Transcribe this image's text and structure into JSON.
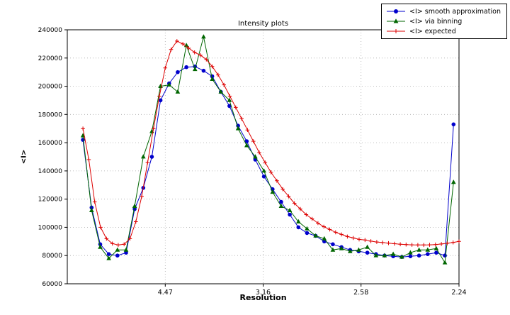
{
  "chart_data": {
    "type": "line",
    "title": "Intensity plots",
    "xlabel": "Resolution",
    "ylabel": "<I>",
    "x_axis_scale": "linear in 1/d^2 (x values are 1/d^2); tick labels show resolution d",
    "xlim": [
      0,
      0.2
    ],
    "ylim": [
      60000,
      240000
    ],
    "x_ticks": [
      {
        "value": 0.05,
        "label": "4.47"
      },
      {
        "value": 0.1,
        "label": "3.16"
      },
      {
        "value": 0.15,
        "label": "2.58"
      },
      {
        "value": 0.2,
        "label": "2.24"
      }
    ],
    "y_ticks": [
      60000,
      80000,
      100000,
      120000,
      140000,
      160000,
      180000,
      200000,
      220000,
      240000
    ],
    "grid": true,
    "legend_position": "upper right outside axes",
    "series": [
      {
        "name": "<I> smooth approximation",
        "color": "#0000cc",
        "marker": "circle",
        "x": [
          0.008,
          0.0124,
          0.0168,
          0.0212,
          0.0256,
          0.03,
          0.0344,
          0.0388,
          0.0432,
          0.0476,
          0.052,
          0.0564,
          0.0608,
          0.0652,
          0.0696,
          0.074,
          0.0784,
          0.0828,
          0.0872,
          0.0916,
          0.096,
          0.1004,
          0.1048,
          0.1092,
          0.1136,
          0.118,
          0.1224,
          0.1268,
          0.1312,
          0.1356,
          0.14,
          0.1444,
          0.1488,
          0.1532,
          0.1576,
          0.162,
          0.1664,
          0.1708,
          0.1752,
          0.1796,
          0.184,
          0.1884,
          0.1928,
          0.1972
        ],
        "y": [
          162000,
          114000,
          88000,
          81000,
          80000,
          82000,
          113000,
          128000,
          150000,
          190000,
          202000,
          210000,
          213500,
          214000,
          211000,
          207000,
          196000,
          186000,
          172000,
          161000,
          148000,
          136000,
          127000,
          118000,
          109000,
          100000,
          96000,
          94000,
          90000,
          88000,
          86000,
          84000,
          83000,
          82000,
          81000,
          80000,
          79500,
          79000,
          79500,
          80000,
          81000,
          82000,
          80000,
          173000
        ]
      },
      {
        "name": "<I> via binning",
        "color": "#006600",
        "marker": "triangle",
        "x": [
          0.008,
          0.0124,
          0.0168,
          0.0212,
          0.0256,
          0.03,
          0.0344,
          0.0388,
          0.0432,
          0.0476,
          0.052,
          0.0564,
          0.0608,
          0.0652,
          0.0696,
          0.074,
          0.0784,
          0.0828,
          0.0872,
          0.0916,
          0.096,
          0.1004,
          0.1048,
          0.1092,
          0.1136,
          0.118,
          0.1224,
          0.1268,
          0.1312,
          0.1356,
          0.14,
          0.1444,
          0.1488,
          0.1532,
          0.1576,
          0.162,
          0.1664,
          0.1708,
          0.1752,
          0.1796,
          0.184,
          0.1884,
          0.1928,
          0.1972
        ],
        "y": [
          165000,
          112000,
          86000,
          78000,
          84000,
          84000,
          115000,
          150000,
          168000,
          200000,
          201000,
          196000,
          229000,
          212000,
          235000,
          205000,
          196000,
          190000,
          170000,
          158000,
          150000,
          140000,
          125000,
          115000,
          112000,
          104000,
          99000,
          94000,
          92000,
          84000,
          85000,
          83000,
          84000,
          86000,
          80000,
          80000,
          81000,
          79000,
          82000,
          84000,
          84000,
          85000,
          75000,
          132000
        ]
      },
      {
        "name": "<I> expected",
        "color": "#dd0000",
        "marker": "plus",
        "x": [
          0.008,
          0.011,
          0.014,
          0.017,
          0.02,
          0.023,
          0.026,
          0.029,
          0.032,
          0.035,
          0.038,
          0.041,
          0.044,
          0.047,
          0.05,
          0.053,
          0.056,
          0.059,
          0.062,
          0.065,
          0.068,
          0.071,
          0.074,
          0.077,
          0.08,
          0.083,
          0.086,
          0.089,
          0.092,
          0.095,
          0.098,
          0.101,
          0.104,
          0.107,
          0.11,
          0.113,
          0.116,
          0.119,
          0.122,
          0.125,
          0.128,
          0.131,
          0.134,
          0.137,
          0.14,
          0.143,
          0.146,
          0.149,
          0.152,
          0.155,
          0.158,
          0.161,
          0.164,
          0.167,
          0.17,
          0.173,
          0.176,
          0.179,
          0.182,
          0.185,
          0.188,
          0.191,
          0.194,
          0.197,
          0.2
        ],
        "y": [
          170000,
          148000,
          118000,
          100000,
          92000,
          88500,
          87500,
          88000,
          92000,
          104000,
          122000,
          146000,
          170000,
          193000,
          213000,
          226000,
          232000,
          230000,
          227000,
          224000,
          222000,
          219000,
          214000,
          208000,
          201000,
          193000,
          185000,
          177000,
          169000,
          161000,
          153000,
          146000,
          139000,
          133000,
          127000,
          122000,
          117000,
          113000,
          109000,
          106000,
          103000,
          100500,
          98500,
          96500,
          95000,
          93500,
          92500,
          91500,
          91000,
          90200,
          89600,
          89200,
          88800,
          88400,
          88000,
          87800,
          87600,
          87500,
          87500,
          87600,
          87800,
          88200,
          88700,
          89300,
          90000
        ]
      }
    ]
  }
}
